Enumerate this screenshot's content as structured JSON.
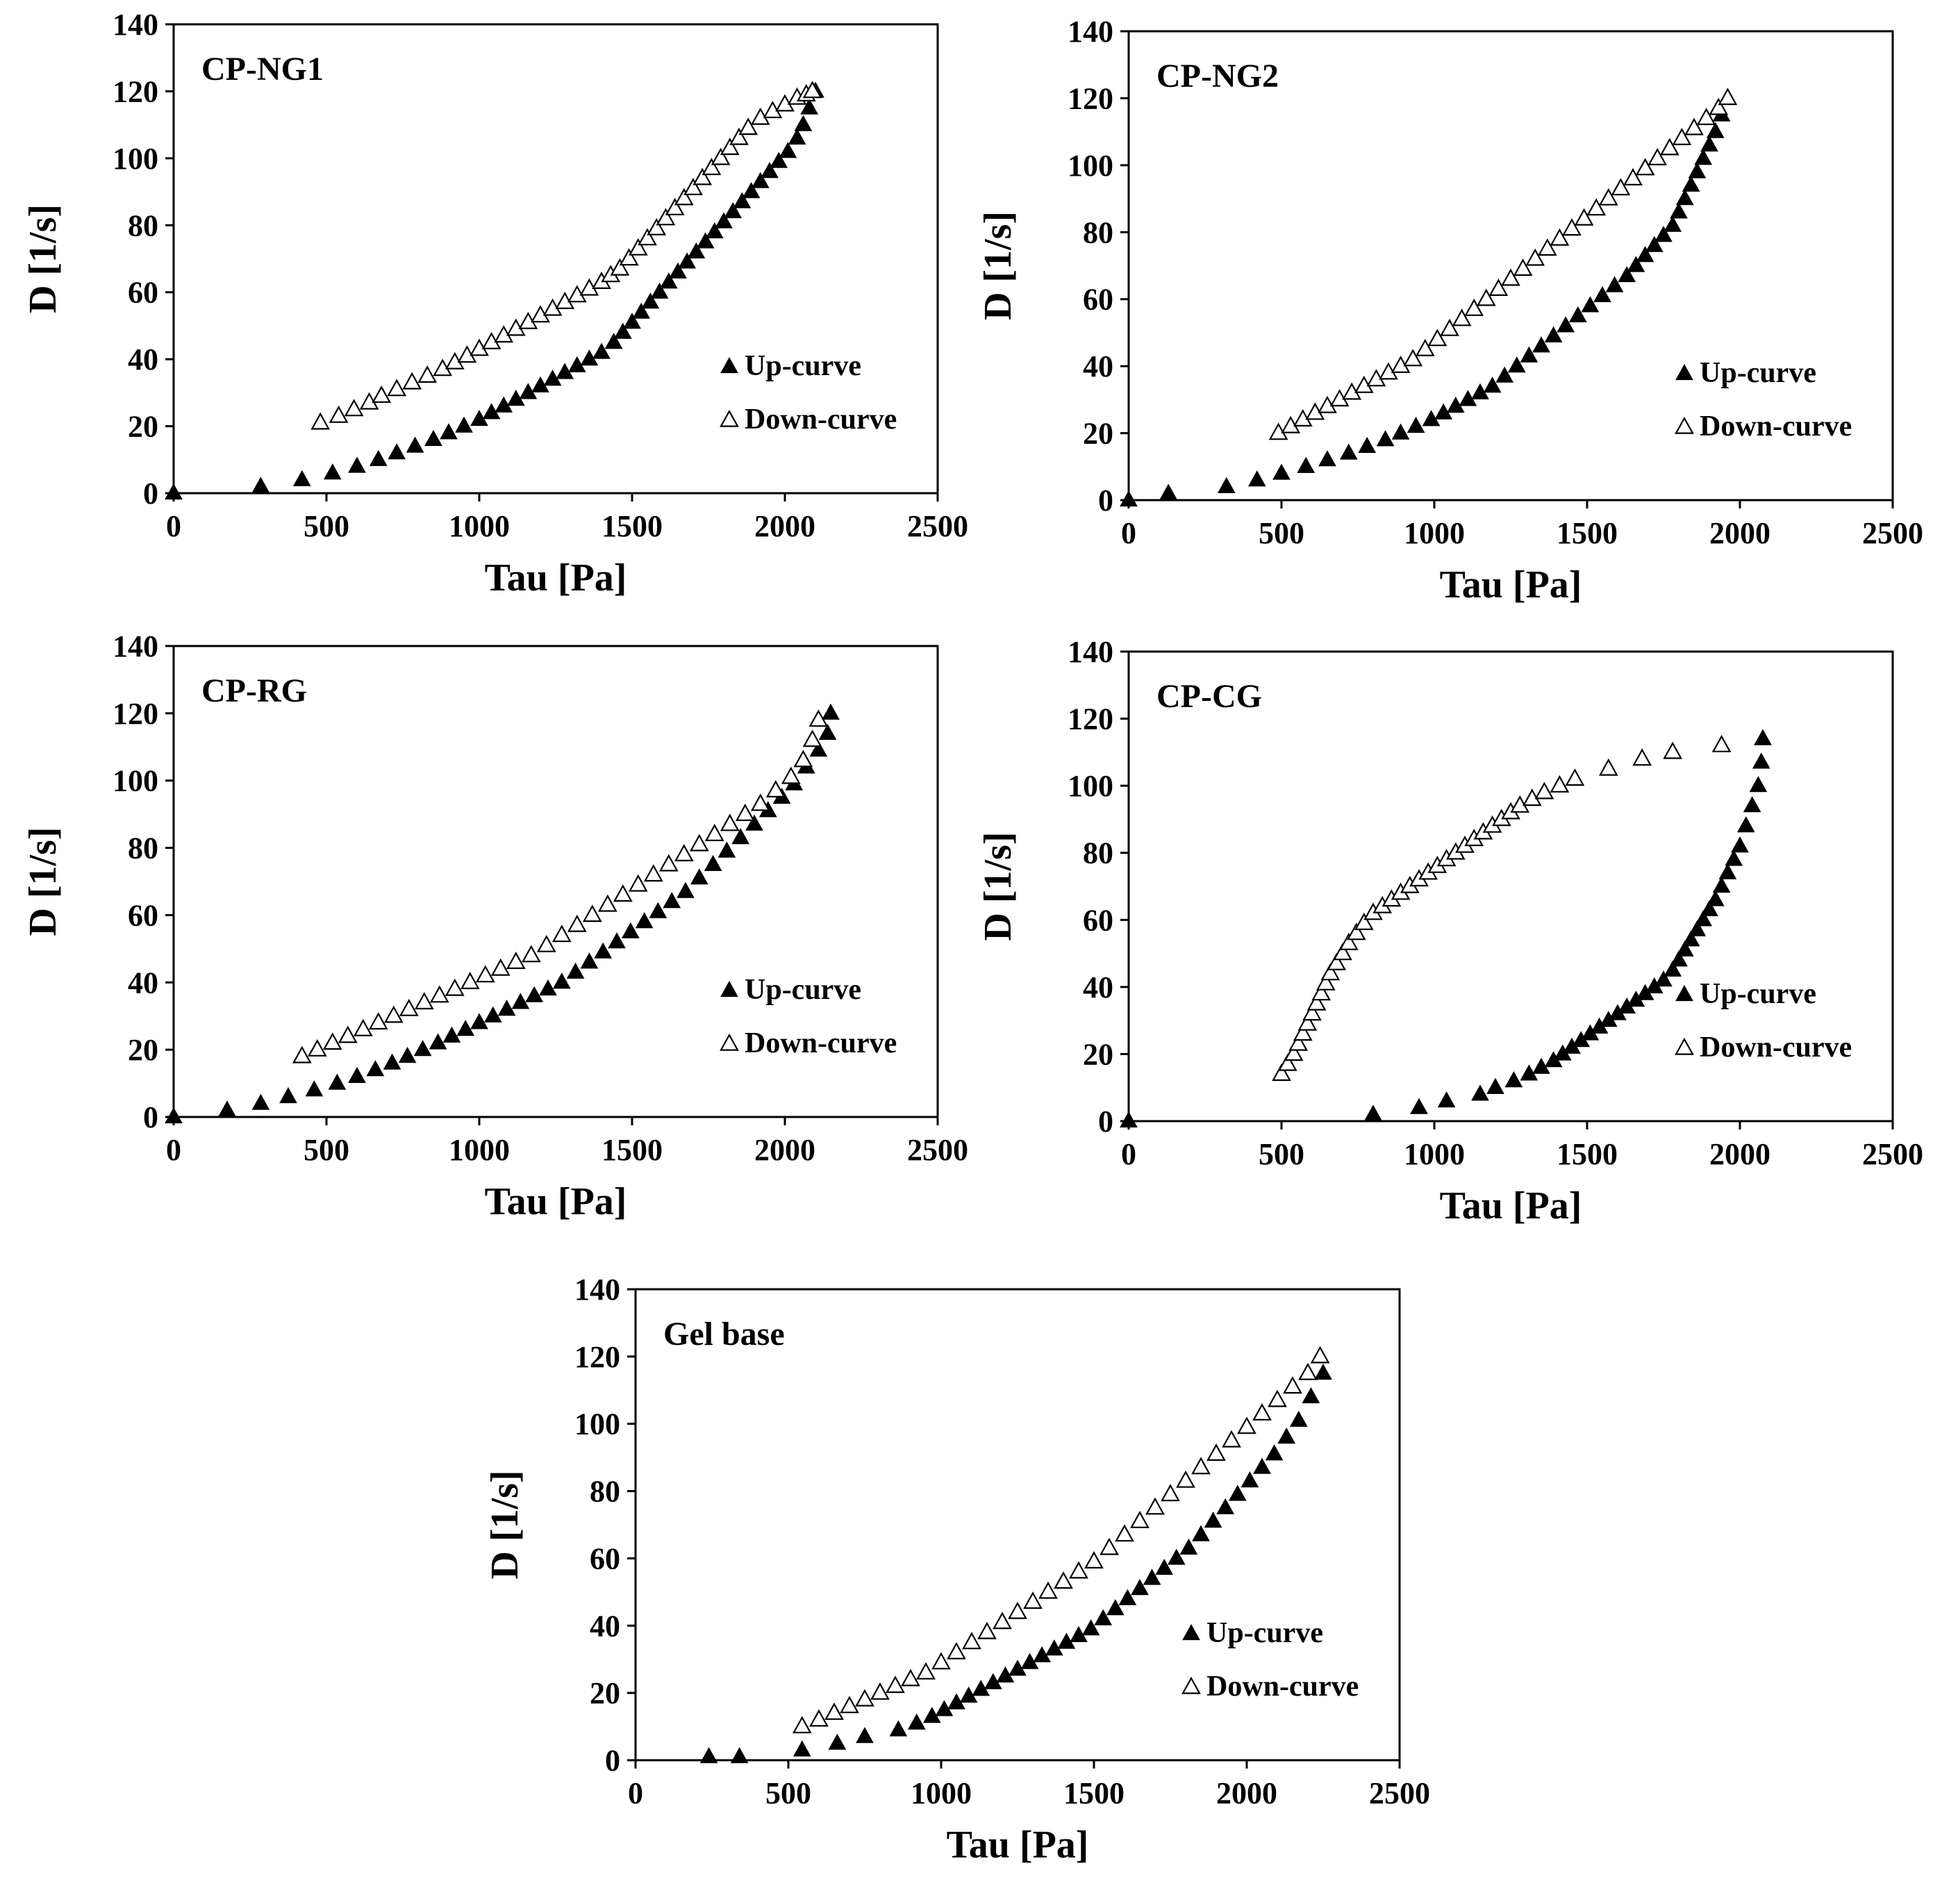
{
  "colors": {
    "marker": "#000000",
    "axis": "#000000",
    "background": "#ffffff"
  },
  "chart_data": [
    {
      "type": "scatter",
      "label": "CP-NG1",
      "xlabel": "Tau [Pa]",
      "ylabel": "D [1/s]",
      "xlim": [
        0,
        2500
      ],
      "ylim": [
        0,
        140
      ],
      "xticks": [
        0,
        500,
        1000,
        1500,
        2000,
        2500
      ],
      "yticks": [
        0,
        20,
        40,
        60,
        80,
        100,
        120,
        140
      ],
      "grid": false,
      "legend_position": "lower-right",
      "series": [
        {
          "name": "Up-curve",
          "marker": "filled-triangle",
          "x": [
            0,
            285,
            420,
            520,
            600,
            670,
            730,
            790,
            850,
            900,
            950,
            1000,
            1040,
            1080,
            1120,
            1160,
            1200,
            1240,
            1280,
            1320,
            1360,
            1400,
            1440,
            1470,
            1500,
            1530,
            1560,
            1590,
            1620,
            1650,
            1680,
            1710,
            1740,
            1770,
            1800,
            1830,
            1860,
            1890,
            1920,
            1950,
            1980,
            2010,
            2040,
            2060,
            2080,
            2100
          ],
          "y": [
            0,
            2,
            4,
            6,
            8,
            10,
            12,
            14,
            16,
            18,
            20,
            22,
            24,
            26,
            28,
            30,
            32,
            34,
            36,
            38,
            40,
            42,
            45,
            48,
            51,
            54,
            57,
            60,
            63,
            66,
            69,
            72,
            75,
            78,
            81,
            84,
            87,
            90,
            93,
            96,
            99,
            102,
            106,
            110,
            115,
            120
          ]
        },
        {
          "name": "Down-curve",
          "marker": "open-triangle",
          "x": [
            480,
            540,
            590,
            640,
            680,
            730,
            780,
            830,
            880,
            920,
            960,
            1000,
            1040,
            1080,
            1120,
            1160,
            1200,
            1240,
            1280,
            1320,
            1360,
            1400,
            1430,
            1460,
            1490,
            1520,
            1550,
            1580,
            1610,
            1640,
            1670,
            1700,
            1730,
            1760,
            1790,
            1820,
            1850,
            1880,
            1920,
            1960,
            2000,
            2040,
            2070,
            2090
          ],
          "y": [
            21,
            23,
            25,
            27,
            29,
            31,
            33,
            35,
            37,
            39,
            41,
            43,
            45,
            47,
            49,
            51,
            53,
            55,
            57,
            59,
            61,
            63,
            65,
            67,
            70,
            73,
            76,
            79,
            82,
            85,
            88,
            91,
            94,
            97,
            100,
            103,
            106,
            109,
            112,
            114,
            116,
            118,
            119,
            120
          ]
        }
      ]
    },
    {
      "type": "scatter",
      "label": "CP-NG2",
      "xlabel": "Tau [Pa]",
      "ylabel": "D [1/s]",
      "xlim": [
        0,
        2500
      ],
      "ylim": [
        0,
        140
      ],
      "xticks": [
        0,
        500,
        1000,
        1500,
        2000,
        2500
      ],
      "yticks": [
        0,
        20,
        40,
        60,
        80,
        100,
        120,
        140
      ],
      "grid": false,
      "legend_position": "lower-right",
      "series": [
        {
          "name": "Up-curve",
          "marker": "filled-triangle",
          "x": [
            0,
            130,
            320,
            420,
            500,
            580,
            650,
            720,
            780,
            840,
            890,
            940,
            990,
            1030,
            1070,
            1110,
            1150,
            1190,
            1230,
            1270,
            1310,
            1350,
            1390,
            1430,
            1470,
            1510,
            1550,
            1590,
            1630,
            1660,
            1690,
            1720,
            1750,
            1780,
            1800,
            1820,
            1840,
            1860,
            1880,
            1900,
            1920,
            1940,
            1960
          ],
          "y": [
            0,
            2,
            4,
            6,
            8,
            10,
            12,
            14,
            16,
            18,
            20,
            22,
            24,
            26,
            28,
            30,
            32,
            34,
            37,
            40,
            43,
            46,
            49,
            52,
            55,
            58,
            61,
            64,
            67,
            70,
            73,
            76,
            79,
            82,
            86,
            90,
            94,
            98,
            102,
            106,
            110,
            115,
            120
          ]
        },
        {
          "name": "Down-curve",
          "marker": "open-triangle",
          "x": [
            490,
            530,
            570,
            610,
            650,
            690,
            730,
            770,
            810,
            850,
            890,
            930,
            970,
            1010,
            1050,
            1090,
            1130,
            1170,
            1210,
            1250,
            1290,
            1330,
            1370,
            1410,
            1450,
            1490,
            1530,
            1570,
            1610,
            1650,
            1690,
            1730,
            1770,
            1810,
            1850,
            1890,
            1930,
            1960
          ],
          "y": [
            20,
            22,
            24,
            26,
            28,
            30,
            32,
            34,
            36,
            38,
            40,
            42,
            45,
            48,
            51,
            54,
            57,
            60,
            63,
            66,
            69,
            72,
            75,
            78,
            81,
            84,
            87,
            90,
            93,
            96,
            99,
            102,
            105,
            108,
            111,
            114,
            117,
            120
          ]
        }
      ]
    },
    {
      "type": "scatter",
      "label": "CP-RG",
      "xlabel": "Tau [Pa]",
      "ylabel": "D [1/s]",
      "xlim": [
        0,
        2500
      ],
      "ylim": [
        0,
        140
      ],
      "xticks": [
        0,
        500,
        1000,
        1500,
        2000,
        2500
      ],
      "yticks": [
        0,
        20,
        40,
        60,
        80,
        100,
        120,
        140
      ],
      "grid": false,
      "legend_position": "lower-right",
      "series": [
        {
          "name": "Up-curve",
          "marker": "filled-triangle",
          "x": [
            0,
            175,
            285,
            375,
            460,
            535,
            600,
            660,
            715,
            765,
            815,
            865,
            910,
            955,
            1000,
            1045,
            1090,
            1135,
            1180,
            1225,
            1270,
            1315,
            1360,
            1405,
            1450,
            1495,
            1540,
            1585,
            1630,
            1675,
            1720,
            1765,
            1810,
            1855,
            1900,
            1945,
            1990,
            2030,
            2070,
            2110,
            2140,
            2150
          ],
          "y": [
            0,
            2,
            4,
            6,
            8,
            10,
            12,
            14,
            16,
            18,
            20,
            22,
            24,
            26,
            28,
            30,
            32,
            34,
            36,
            38,
            40,
            43,
            46,
            49,
            52,
            55,
            58,
            61,
            64,
            67,
            71,
            75,
            79,
            83,
            87,
            91,
            95,
            99,
            104,
            109,
            114,
            120
          ]
        },
        {
          "name": "Down-curve",
          "marker": "open-triangle",
          "x": [
            420,
            470,
            520,
            570,
            620,
            670,
            720,
            770,
            820,
            870,
            920,
            970,
            1020,
            1070,
            1120,
            1170,
            1220,
            1270,
            1320,
            1370,
            1420,
            1470,
            1520,
            1570,
            1620,
            1670,
            1720,
            1770,
            1820,
            1870,
            1920,
            1970,
            2020,
            2060,
            2090,
            2110
          ],
          "y": [
            18,
            20,
            22,
            24,
            26,
            28,
            30,
            32,
            34,
            36,
            38,
            40,
            42,
            44,
            46,
            48,
            51,
            54,
            57,
            60,
            63,
            66,
            69,
            72,
            75,
            78,
            81,
            84,
            87,
            90,
            93,
            97,
            101,
            106,
            112,
            118
          ]
        }
      ]
    },
    {
      "type": "scatter",
      "label": "CP-CG",
      "xlabel": "Tau [Pa]",
      "ylabel": "D [1/s]",
      "xlim": [
        0,
        2500
      ],
      "ylim": [
        0,
        140
      ],
      "xticks": [
        0,
        500,
        1000,
        1500,
        2000,
        2500
      ],
      "yticks": [
        0,
        20,
        40,
        60,
        80,
        100,
        120,
        140
      ],
      "grid": false,
      "legend_position": "lower-right",
      "series": [
        {
          "name": "Up-curve",
          "marker": "filled-triangle",
          "x": [
            0,
            800,
            950,
            1040,
            1150,
            1200,
            1260,
            1310,
            1350,
            1390,
            1420,
            1450,
            1480,
            1510,
            1540,
            1570,
            1600,
            1630,
            1660,
            1690,
            1720,
            1750,
            1780,
            1800,
            1820,
            1840,
            1860,
            1880,
            1900,
            1920,
            1940,
            1960,
            1980,
            2000,
            2020,
            2040,
            2060,
            2070,
            2075
          ],
          "y": [
            0,
            2,
            4,
            6,
            8,
            10,
            12,
            14,
            16,
            18,
            20,
            22,
            24,
            26,
            28,
            30,
            32,
            34,
            36,
            38,
            40,
            42,
            45,
            48,
            51,
            54,
            57,
            60,
            63,
            66,
            70,
            74,
            78,
            82,
            88,
            94,
            100,
            107,
            114
          ]
        },
        {
          "name": "Down-curve",
          "marker": "open-triangle",
          "x": [
            500,
            520,
            540,
            555,
            570,
            585,
            600,
            615,
            630,
            645,
            660,
            680,
            700,
            720,
            745,
            770,
            800,
            830,
            860,
            890,
            920,
            950,
            980,
            1010,
            1040,
            1070,
            1100,
            1130,
            1160,
            1190,
            1220,
            1250,
            1280,
            1320,
            1360,
            1410,
            1460,
            1570,
            1680,
            1780,
            1940
          ],
          "y": [
            14,
            17,
            20,
            23,
            26,
            29,
            32,
            35,
            38,
            41,
            44,
            47,
            50,
            53,
            56,
            59,
            62,
            64,
            66,
            68,
            70,
            72,
            74,
            76,
            78,
            80,
            82,
            84,
            86,
            88,
            90,
            92,
            94,
            96,
            98,
            100,
            102,
            105,
            108,
            110,
            112
          ]
        }
      ]
    },
    {
      "type": "scatter",
      "label": "Gel base",
      "xlabel": "Tau [Pa]",
      "ylabel": "D [1/s]",
      "xlim": [
        0,
        2500
      ],
      "ylim": [
        0,
        140
      ],
      "xticks": [
        0,
        500,
        1000,
        1500,
        2000,
        2500
      ],
      "yticks": [
        0,
        20,
        40,
        60,
        80,
        100,
        120,
        140
      ],
      "grid": false,
      "legend_position": "lower-right",
      "series": [
        {
          "name": "Up-curve",
          "marker": "filled-triangle",
          "x": [
            240,
            340,
            545,
            660,
            750,
            860,
            920,
            970,
            1010,
            1050,
            1090,
            1130,
            1170,
            1210,
            1250,
            1290,
            1330,
            1370,
            1410,
            1450,
            1490,
            1530,
            1570,
            1610,
            1650,
            1690,
            1730,
            1770,
            1810,
            1850,
            1890,
            1930,
            1970,
            2010,
            2050,
            2090,
            2130,
            2170,
            2210,
            2250
          ],
          "y": [
            1,
            1,
            3,
            5,
            7,
            9,
            11,
            13,
            15,
            17,
            19,
            21,
            23,
            25,
            27,
            29,
            31,
            33,
            35,
            37,
            39,
            42,
            45,
            48,
            51,
            54,
            57,
            60,
            63,
            67,
            71,
            75,
            79,
            83,
            87,
            91,
            96,
            101,
            108,
            115
          ]
        },
        {
          "name": "Down-curve",
          "marker": "open-triangle",
          "x": [
            545,
            600,
            650,
            700,
            750,
            800,
            850,
            900,
            950,
            1000,
            1050,
            1100,
            1150,
            1200,
            1250,
            1300,
            1350,
            1400,
            1450,
            1500,
            1550,
            1600,
            1650,
            1700,
            1750,
            1800,
            1850,
            1900,
            1950,
            2000,
            2050,
            2100,
            2150,
            2200,
            2240
          ],
          "y": [
            10,
            12,
            14,
            16,
            18,
            20,
            22,
            24,
            26,
            29,
            32,
            35,
            38,
            41,
            44,
            47,
            50,
            53,
            56,
            59,
            63,
            67,
            71,
            75,
            79,
            83,
            87,
            91,
            95,
            99,
            103,
            107,
            111,
            115,
            120
          ]
        }
      ]
    }
  ]
}
